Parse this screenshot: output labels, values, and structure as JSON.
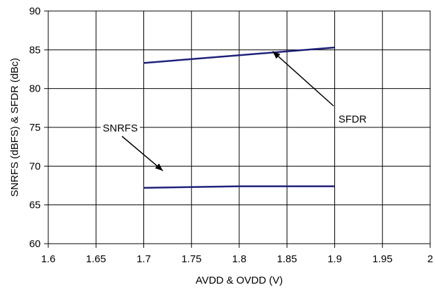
{
  "chart_data": {
    "type": "line",
    "title": "",
    "xlabel": "AVDD & OVDD (V)",
    "ylabel": "SNRFS (dBFS) & SFDR (dBc)",
    "xlim": [
      1.6,
      2.0
    ],
    "ylim": [
      60,
      90
    ],
    "x_ticks": [
      "1.6",
      "1.65",
      "1.7",
      "1.75",
      "1.8",
      "1.85",
      "1.9",
      "1.95",
      "2"
    ],
    "y_ticks": [
      "60",
      "65",
      "70",
      "75",
      "80",
      "85",
      "90"
    ],
    "grid": true,
    "legend": "none",
    "series": [
      {
        "name": "SFDR",
        "x": [
          1.7,
          1.8,
          1.9
        ],
        "values": [
          83.3,
          84.3,
          85.3
        ],
        "color": "#1f1f7a"
      },
      {
        "name": "SNRFS",
        "x": [
          1.7,
          1.8,
          1.9
        ],
        "values": [
          67.2,
          67.4,
          67.4
        ],
        "color": "#1f1f7a"
      }
    ],
    "annotations": [
      {
        "text": "SFDR",
        "target_series": "SFDR",
        "target_x": 1.835,
        "target_y": 84.8
      },
      {
        "text": "SNRFS",
        "target_series": "SNRFS",
        "target_x": 1.72,
        "target_y": 69.4
      }
    ]
  }
}
